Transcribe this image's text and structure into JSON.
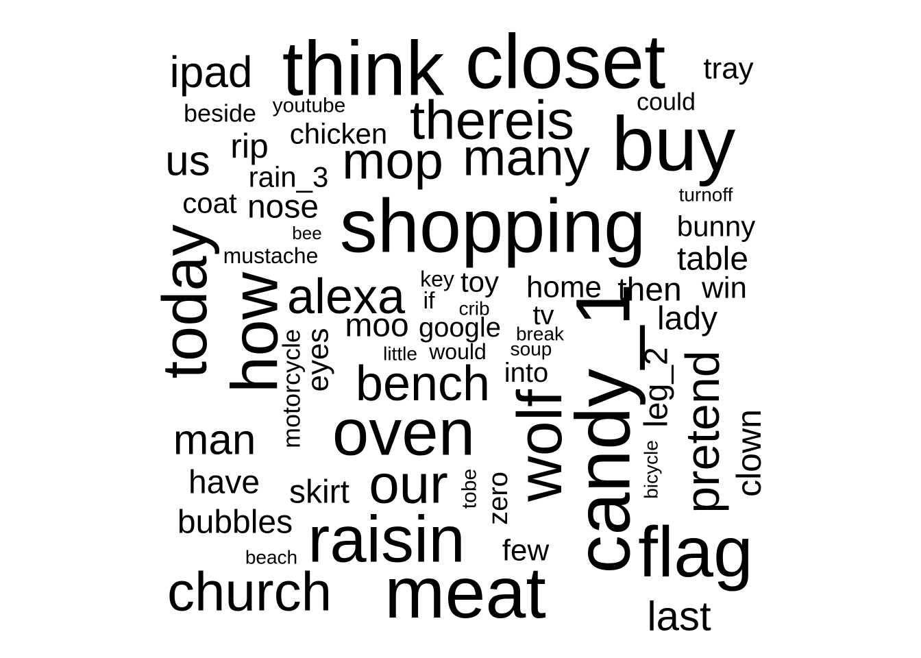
{
  "chart_data": {
    "type": "wordcloud",
    "color": "#000000",
    "background": "#ffffff",
    "words": [
      "closet",
      "think",
      "ipad",
      "tray",
      "could",
      "youtube",
      "beside",
      "thereis",
      "buy",
      "chicken",
      "rip",
      "us",
      "mop",
      "many",
      "rain_3",
      "turnoff",
      "coat",
      "nose",
      "shopping",
      "bunny",
      "bee",
      "mustache",
      "table",
      "today",
      "how",
      "alexa",
      "key",
      "toy",
      "home",
      "then",
      "win",
      "if",
      "crib",
      "lady",
      "tv",
      "moo",
      "google",
      "break",
      "eyes",
      "motorcycle",
      "candy_1",
      "little",
      "would",
      "soup",
      "leg_2",
      "bench",
      "into",
      "pretend",
      "wolf",
      "oven",
      "man",
      "clown",
      "bicycle",
      "our",
      "have",
      "tobe",
      "zero",
      "skirt",
      "bubbles",
      "raisin",
      "flag",
      "few",
      "beach",
      "meat",
      "church",
      "last"
    ]
  }
}
